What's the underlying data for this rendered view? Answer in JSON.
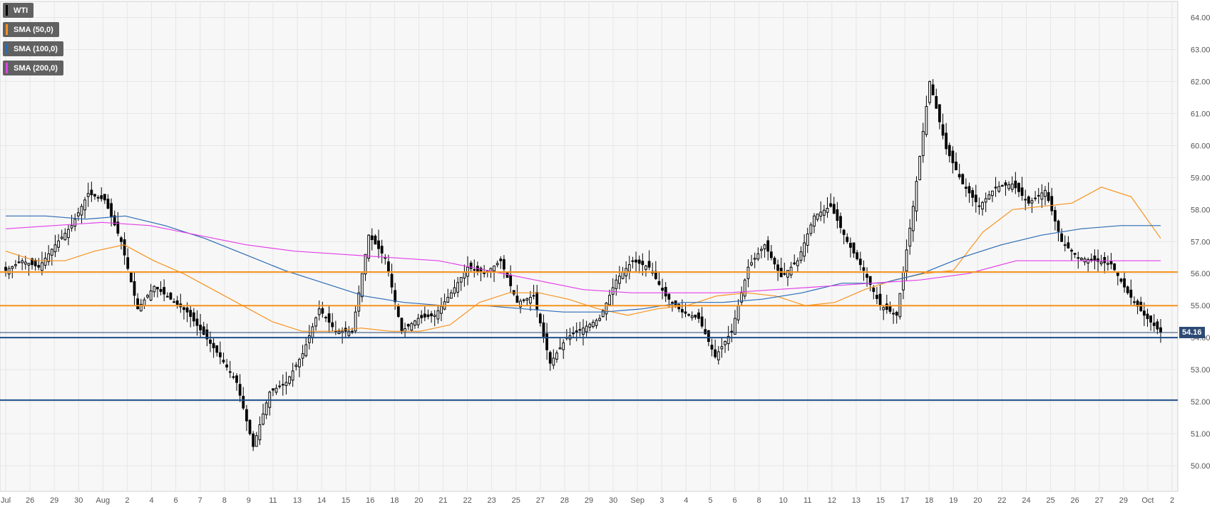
{
  "legend": {
    "symbol": "WTI",
    "sma50": "SMA (50,0)",
    "sma100": "SMA (100,0)",
    "sma200": "SMA (200,0)"
  },
  "colors": {
    "background": "#f7f7f7",
    "grid": "#e6e6e6",
    "candle_up": "#ffffff",
    "candle_down": "#000000",
    "sma50": "#f7931e",
    "sma100": "#2b6bb5",
    "sma200": "#e43fe9",
    "resistance": "#f7931e",
    "support": "#1f4e8c"
  },
  "last_price": "54.16",
  "chart_data": {
    "type": "candlestick",
    "title": "",
    "xlabel": "",
    "ylabel": "",
    "ylim": [
      49.2,
      64.5
    ],
    "y_ticks": [
      "50.00",
      "51.00",
      "52.00",
      "53.00",
      "54.00",
      "55.00",
      "56.00",
      "57.00",
      "58.00",
      "59.00",
      "60.00",
      "61.00",
      "62.00",
      "63.00",
      "64.00"
    ],
    "x_ticks": [
      "Jul",
      "26",
      "29",
      "30",
      "Aug",
      "2",
      "4",
      "6",
      "7",
      "8",
      "9",
      "11",
      "13",
      "14",
      "15",
      "16",
      "18",
      "20",
      "21",
      "22",
      "23",
      "25",
      "27",
      "28",
      "29",
      "30",
      "Sep",
      "3",
      "4",
      "5",
      "6",
      "8",
      "10",
      "11",
      "12",
      "13",
      "15",
      "17",
      "18",
      "19",
      "20",
      "22",
      "24",
      "25",
      "26",
      "27",
      "29",
      "Oct",
      "2"
    ],
    "horizontal_levels": [
      {
        "type": "resistance",
        "value": 56.05
      },
      {
        "type": "resistance",
        "value": 55.0
      },
      {
        "type": "support",
        "value": 54.0
      },
      {
        "type": "support",
        "value": 52.05
      }
    ],
    "price_anchors": [
      56.1,
      56.4,
      56.2,
      56.9,
      57.5,
      58.5,
      58.3,
      57.0,
      54.9,
      55.6,
      55.2,
      54.8,
      54.1,
      53.4,
      52.6,
      50.6,
      52.3,
      52.6,
      53.5,
      54.9,
      54.2,
      54.2,
      57.2,
      56.5,
      54.2,
      54.6,
      54.7,
      55.4,
      56.2,
      56.0,
      56.4,
      55.1,
      55.3,
      53.2,
      54.0,
      54.3,
      54.6,
      55.8,
      56.4,
      56.2,
      55.3,
      54.8,
      54.6,
      53.4,
      54.2,
      56.2,
      56.9,
      55.9,
      56.4,
      57.8,
      58.1,
      57.0,
      56.1,
      55.0,
      54.7,
      58.1,
      62.0,
      59.9,
      58.8,
      58.1,
      58.7,
      58.8,
      58.2,
      58.6,
      57.0,
      56.5,
      56.4,
      56.3,
      55.4,
      54.7,
      54.16
    ],
    "series": [
      {
        "name": "SMA (50,0)",
        "values": [
          56.7,
          56.4,
          56.4,
          56.7,
          56.9,
          56.4,
          56.0,
          55.5,
          55.0,
          54.5,
          54.2,
          54.2,
          54.3,
          54.2,
          54.2,
          54.4,
          55.1,
          55.4,
          55.4,
          55.2,
          54.9,
          54.7,
          54.9,
          55.0,
          55.3,
          55.4,
          55.3,
          55.0,
          55.1,
          55.5,
          55.8,
          56.0,
          56.1,
          57.3,
          58.0,
          58.1,
          58.2,
          58.7,
          58.4,
          57.1
        ]
      },
      {
        "name": "SMA (100,0)",
        "values": [
          57.8,
          57.8,
          57.7,
          57.8,
          57.5,
          57.1,
          56.6,
          56.1,
          55.7,
          55.3,
          55.1,
          55.0,
          55.0,
          54.9,
          54.8,
          54.8,
          54.9,
          55.1,
          55.1,
          55.2,
          55.4,
          55.7,
          55.7,
          56.0,
          56.5,
          56.9,
          57.2,
          57.4,
          57.5,
          57.5
        ]
      },
      {
        "name": "SMA (200,0)",
        "values": [
          57.4,
          57.5,
          57.6,
          57.5,
          57.2,
          56.9,
          56.7,
          56.6,
          56.5,
          56.4,
          56.1,
          55.8,
          55.5,
          55.4,
          55.4,
          55.4,
          55.5,
          55.6,
          55.7,
          55.8,
          56.0,
          56.4,
          56.4,
          56.4,
          56.4
        ]
      }
    ]
  }
}
